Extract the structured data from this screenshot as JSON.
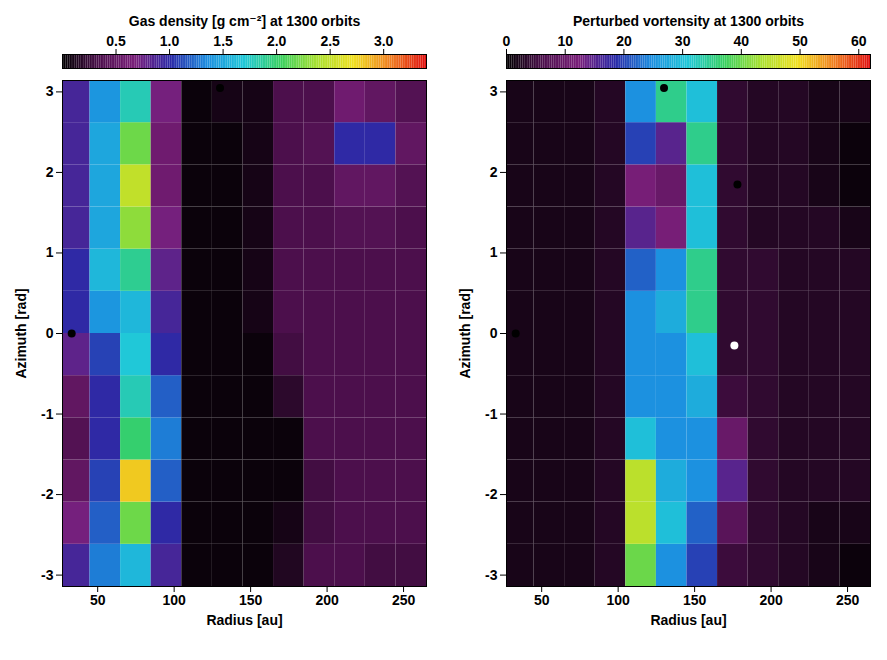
{
  "chart_data": [
    {
      "type": "heatmap",
      "title": "Gas density [g cm⁻²] at 1300 orbits",
      "xlabel": "Radius [au]",
      "ylabel": "Azimuth [rad]",
      "xlim": [
        27,
        265
      ],
      "ylim": [
        -3.1416,
        3.1416
      ],
      "xticks": [
        50,
        100,
        150,
        200,
        250
      ],
      "yticks": [
        -3,
        -2,
        -1,
        0,
        1,
        2,
        3
      ],
      "x_edges": [
        27,
        45,
        65,
        85,
        105,
        125,
        145,
        165,
        185,
        205,
        225,
        245,
        265
      ],
      "y_edges": [
        -3.1416,
        -2.618,
        -2.0944,
        -1.5708,
        -1.0472,
        -0.5236,
        0,
        0.5236,
        1.0472,
        1.5708,
        2.0944,
        2.618,
        3.1416
      ],
      "cells": [
        [
          0.9,
          1.3,
          1.6,
          0.9,
          0.05,
          0.05,
          0.05,
          0.15,
          0.35,
          0.35,
          0.3,
          0.3
        ],
        [
          0.7,
          1.2,
          2.2,
          1.0,
          0.05,
          0.05,
          0.05,
          0.1,
          0.3,
          0.35,
          0.35,
          0.35
        ],
        [
          0.5,
          1.1,
          2.8,
          1.2,
          0.05,
          0.05,
          0.05,
          0.05,
          0.3,
          0.35,
          0.35,
          0.35
        ],
        [
          0.4,
          1.0,
          2.0,
          1.3,
          0.05,
          0.05,
          0.05,
          0.05,
          0.35,
          0.35,
          0.35,
          0.35
        ],
        [
          0.5,
          1.0,
          1.8,
          1.2,
          0.05,
          0.05,
          0.05,
          0.2,
          0.35,
          0.35,
          0.35,
          0.35
        ],
        [
          0.8,
          1.1,
          1.7,
          1.0,
          0.05,
          0.05,
          0.05,
          0.3,
          0.35,
          0.35,
          0.35,
          0.35
        ],
        [
          1.0,
          1.4,
          1.6,
          0.9,
          0.05,
          0.05,
          0.1,
          0.35,
          0.35,
          0.35,
          0.35,
          0.35
        ],
        [
          1.0,
          1.6,
          1.9,
          0.8,
          0.05,
          0.05,
          0.1,
          0.35,
          0.35,
          0.35,
          0.35,
          0.35
        ],
        [
          0.9,
          1.5,
          2.3,
          0.7,
          0.05,
          0.05,
          0.1,
          0.35,
          0.35,
          0.4,
          0.4,
          0.35
        ],
        [
          0.9,
          1.5,
          2.5,
          0.6,
          0.05,
          0.05,
          0.1,
          0.35,
          0.35,
          0.5,
          0.5,
          0.4
        ],
        [
          0.9,
          1.5,
          2.2,
          0.6,
          0.05,
          0.05,
          0.1,
          0.35,
          0.4,
          1.0,
          1.0,
          0.5
        ],
        [
          0.9,
          1.4,
          1.8,
          0.7,
          0.05,
          0.1,
          0.1,
          0.35,
          0.35,
          0.6,
          0.5,
          0.4
        ]
      ],
      "colorbar": {
        "lim": [
          0,
          3.4
        ],
        "ticks": [
          0.5,
          {
            "value": 1,
            "label": "1.0"
          },
          1.5,
          {
            "value": 2,
            "label": "2.0"
          },
          2.5,
          {
            "value": 3,
            "label": "3.0"
          }
        ]
      },
      "colors": [
        "#000000",
        "#4b0f4b",
        "#7a1f7a",
        "#2a2aa8",
        "#1c8fe0",
        "#20c8d8",
        "#38d060",
        "#a8e030",
        "#f0e020",
        "#f08020",
        "#e01010"
      ],
      "markers": {
        "x": [
          33,
          130
        ],
        "y": [
          0,
          3.05
        ],
        "colors": [
          "#000000",
          "#000000"
        ]
      }
    },
    {
      "type": "heatmap",
      "title": "Perturbed vortensity at 1300 orbits",
      "xlabel": "Radius [au]",
      "ylabel": "Azimuth [rad]",
      "xlim": [
        27,
        265
      ],
      "ylim": [
        -3.1416,
        3.1416
      ],
      "xticks": [
        50,
        100,
        150,
        200,
        250
      ],
      "yticks": [
        -3,
        -2,
        -1,
        0,
        1,
        2,
        3
      ],
      "x_edges": [
        27,
        45,
        65,
        85,
        105,
        125,
        145,
        165,
        185,
        205,
        225,
        245,
        265
      ],
      "y_edges": [
        -3.1416,
        -2.618,
        -2.0944,
        -1.5708,
        -1.0472,
        -0.5236,
        0,
        0.5236,
        1.0472,
        1.5708,
        2.0944,
        2.618,
        3.1416
      ],
      "cells": [
        [
          2,
          2,
          2,
          3,
          40,
          25,
          20,
          5,
          4,
          3,
          2,
          1
        ],
        [
          2,
          2,
          2,
          3,
          45,
          30,
          22,
          8,
          4,
          3,
          2,
          2
        ],
        [
          2,
          2,
          2,
          3,
          45,
          28,
          25,
          15,
          4,
          3,
          3,
          3
        ],
        [
          2,
          2,
          2,
          3,
          30,
          25,
          25,
          10,
          4,
          3,
          3,
          3
        ],
        [
          2,
          2,
          2,
          3,
          25,
          25,
          28,
          5,
          4,
          3,
          3,
          3
        ],
        [
          2,
          2,
          2,
          3,
          25,
          25,
          30,
          4,
          4,
          3,
          3,
          3
        ],
        [
          2,
          2,
          2,
          3,
          25,
          28,
          35,
          4,
          4,
          3,
          3,
          3
        ],
        [
          2,
          2,
          2,
          3,
          22,
          25,
          35,
          4,
          4,
          3,
          3,
          3
        ],
        [
          2,
          2,
          2,
          3,
          15,
          12,
          30,
          4,
          3,
          3,
          3,
          2
        ],
        [
          2,
          2,
          2,
          3,
          12,
          10,
          30,
          4,
          3,
          3,
          2,
          1
        ],
        [
          2,
          2,
          2,
          3,
          20,
          15,
          35,
          4,
          3,
          3,
          2,
          1
        ],
        [
          2,
          2,
          2,
          3,
          25,
          35,
          30,
          4,
          3,
          3,
          2,
          2
        ]
      ],
      "colorbar": {
        "lim": [
          0,
          62
        ],
        "ticks": [
          0,
          10,
          20,
          30,
          40,
          50,
          60
        ]
      },
      "colors": [
        "#000000",
        "#4b0f4b",
        "#7a1f7a",
        "#2a2aa8",
        "#1c8fe0",
        "#20c8d8",
        "#38d060",
        "#a8e030",
        "#f0e020",
        "#f08020",
        "#e01010"
      ],
      "markers": {
        "x": [
          33,
          130,
          176,
          178
        ],
        "y": [
          0,
          3.05,
          -0.15,
          1.85
        ],
        "colors": [
          "#000000",
          "#000000",
          "#ffffff",
          "#000000"
        ]
      }
    }
  ]
}
